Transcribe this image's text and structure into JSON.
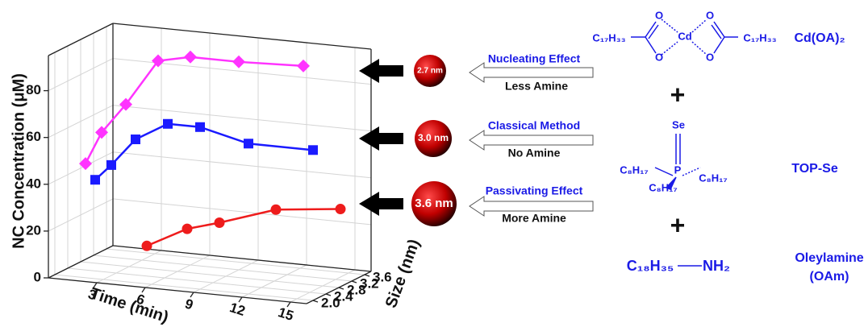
{
  "chart_data": {
    "type": "line3d",
    "x_label": "Time (min)",
    "depth_label": "Size (nm)",
    "y_label": "NC Concentration (μM)",
    "xlim": [
      0,
      16
    ],
    "xticks": [
      3,
      6,
      9,
      12,
      15
    ],
    "depthlim": [
      1.8,
      3.8
    ],
    "depthticks": [
      {
        "value": 2,
        "label": "2.0"
      },
      2.4,
      2.8,
      3.2,
      3.6
    ],
    "ylim": [
      0,
      95
    ],
    "yticks": [
      0,
      20,
      40,
      60,
      80
    ],
    "grid": true,
    "series": [
      {
        "name": "2.7 nm",
        "size": 2.7,
        "color": "#ff33ff",
        "marker": "diamond",
        "x": [
          0.5,
          1.5,
          3,
          5,
          7,
          10,
          14
        ],
        "values": [
          43,
          57,
          70,
          90,
          93,
          93,
          94
        ]
      },
      {
        "name": "3.0 nm",
        "size": 3.0,
        "color": "#1a1aff",
        "marker": "square",
        "x": [
          0.5,
          1.5,
          3,
          5,
          7,
          10,
          14
        ],
        "values": [
          34,
          41,
          53,
          61,
          61,
          56,
          56
        ]
      },
      {
        "name": "3.6 nm",
        "size": 3.6,
        "color": "#ee1c1c",
        "marker": "circle",
        "x": [
          2.5,
          5,
          7,
          10.5,
          14.5
        ],
        "values": [
          3,
          12,
          16,
          24,
          27
        ]
      }
    ]
  },
  "diagram": {
    "effects": [
      {
        "title": "Nucleating Effect",
        "note": "Less Amine"
      },
      {
        "title": "Classical Method",
        "note": "No Amine"
      },
      {
        "title": "Passivating Effect",
        "note": "More Amine"
      }
    ],
    "chem": {
      "chain_left": "C₁₇H₃₃",
      "chain_right": "C₁₇H₃₃",
      "metal": "Cd",
      "oxygens": [
        "O",
        "O",
        "O",
        "O"
      ],
      "cd_name": "Cd(OA)₂",
      "plus": [
        "+",
        "+"
      ],
      "se": "Se",
      "p": "P",
      "octyl": [
        "C₈H₁₇",
        "C₈H₁₇",
        "C₈H₁₇"
      ],
      "top_name": "TOP-Se",
      "amine_chain": "C₁₈H₃₅",
      "amine_group": "NH₂",
      "amine_name": "Oleylamine",
      "amine_abbr": "(OAm)"
    }
  }
}
